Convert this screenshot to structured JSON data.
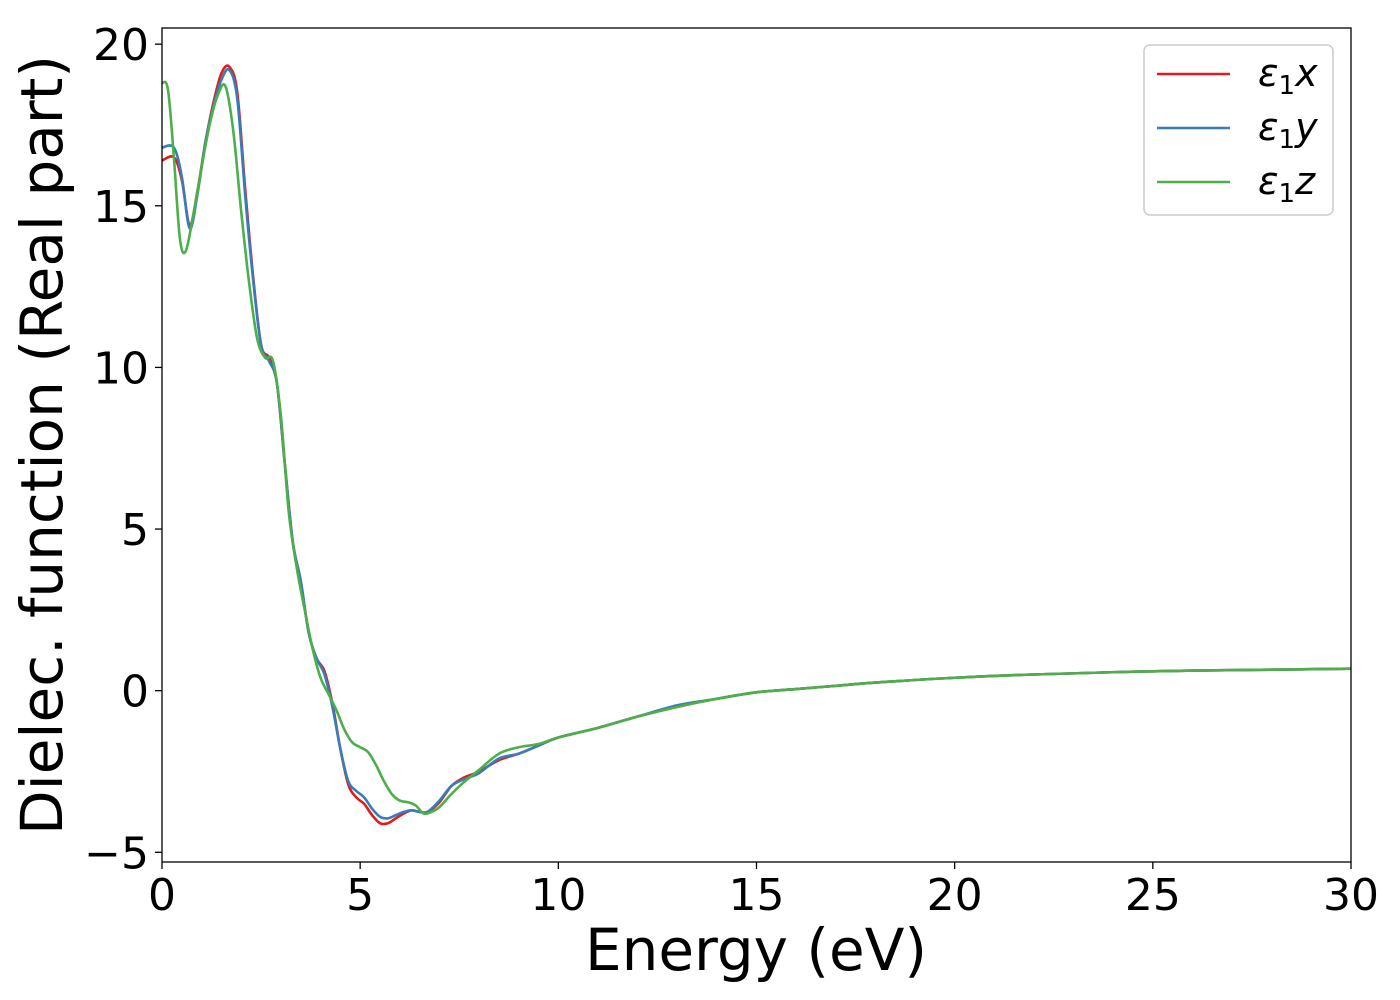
{
  "chart_data": {
    "type": "line",
    "xlabel": "Energy (eV)",
    "ylabel": "Dielec. function (Real part)",
    "xlim": [
      0,
      30
    ],
    "ylim": [
      -5.3,
      20.5
    ],
    "xticks": [
      0,
      5,
      10,
      15,
      20,
      25,
      30
    ],
    "xtick_labels": [
      "0",
      "5",
      "10",
      "15",
      "20",
      "25",
      "30"
    ],
    "yticks": [
      -5,
      0,
      5,
      10,
      15,
      20
    ],
    "ytick_labels": [
      "−5",
      "0",
      "5",
      "10",
      "15",
      "20"
    ],
    "grid": false,
    "legend_position": "top-right",
    "series": [
      {
        "name": "ε1x",
        "legend_base": "ε",
        "legend_sub": "1",
        "legend_var": "x",
        "color": "#e41a1c",
        "x": [
          0,
          0.3,
          0.5,
          0.7,
          0.9,
          1.1,
          1.3,
          1.5,
          1.7,
          1.9,
          2.1,
          2.3,
          2.5,
          2.7,
          2.9,
          3.1,
          3.3,
          3.5,
          3.7,
          3.9,
          4.1,
          4.3,
          4.5,
          4.7,
          4.9,
          5.1,
          5.3,
          5.5,
          5.7,
          5.9,
          6.1,
          6.3,
          6.5,
          6.7,
          7.0,
          7.3,
          7.6,
          8.0,
          8.5,
          9.0,
          9.5,
          10.0,
          11.0,
          12.0,
          13.0,
          14.0,
          15.0,
          16.0,
          17.0,
          18.0,
          20.0,
          22.0,
          25.0,
          28.0,
          30.0
        ],
        "y": [
          16.4,
          16.5,
          15.8,
          14.4,
          15.5,
          17.0,
          18.2,
          19.1,
          19.3,
          18.5,
          15.5,
          12.8,
          10.7,
          10.3,
          9.5,
          7.0,
          4.6,
          3.4,
          1.8,
          1.0,
          0.6,
          -0.4,
          -1.8,
          -2.9,
          -3.3,
          -3.5,
          -3.85,
          -4.1,
          -4.1,
          -3.95,
          -3.8,
          -3.7,
          -3.75,
          -3.75,
          -3.45,
          -2.95,
          -2.7,
          -2.5,
          -2.15,
          -1.95,
          -1.7,
          -1.45,
          -1.15,
          -0.8,
          -0.5,
          -0.25,
          -0.05,
          0.05,
          0.15,
          0.25,
          0.4,
          0.5,
          0.6,
          0.65,
          0.68
        ]
      },
      {
        "name": "ε1y",
        "legend_base": "ε",
        "legend_sub": "1",
        "legend_var": "y",
        "color": "#377eb8",
        "x": [
          0,
          0.3,
          0.5,
          0.7,
          0.9,
          1.1,
          1.3,
          1.5,
          1.7,
          1.9,
          2.1,
          2.3,
          2.5,
          2.7,
          2.9,
          3.1,
          3.3,
          3.5,
          3.7,
          3.9,
          4.1,
          4.3,
          4.5,
          4.7,
          4.9,
          5.1,
          5.3,
          5.5,
          5.7,
          5.9,
          6.1,
          6.3,
          6.5,
          6.7,
          7.0,
          7.3,
          7.6,
          8.0,
          8.5,
          9.0,
          9.5,
          10.0,
          11.0,
          12.0,
          13.0,
          14.0,
          15.0,
          16.0,
          17.0,
          18.0,
          20.0,
          22.0,
          25.0,
          28.0,
          30.0
        ],
        "y": [
          16.8,
          16.8,
          15.9,
          14.3,
          15.4,
          17.0,
          18.1,
          18.9,
          19.2,
          18.3,
          15.3,
          12.7,
          10.7,
          10.2,
          9.5,
          7.0,
          4.6,
          3.4,
          1.8,
          1.0,
          0.5,
          -0.5,
          -1.8,
          -2.8,
          -3.1,
          -3.3,
          -3.65,
          -3.9,
          -3.95,
          -3.85,
          -3.75,
          -3.7,
          -3.75,
          -3.75,
          -3.4,
          -2.95,
          -2.75,
          -2.55,
          -2.1,
          -1.95,
          -1.7,
          -1.45,
          -1.15,
          -0.8,
          -0.45,
          -0.25,
          -0.05,
          0.05,
          0.15,
          0.25,
          0.4,
          0.5,
          0.6,
          0.65,
          0.68
        ]
      },
      {
        "name": "ε1z",
        "legend_base": "ε",
        "legend_sub": "1",
        "legend_var": "z",
        "color": "#4daf4a",
        "x": [
          0,
          0.15,
          0.3,
          0.45,
          0.6,
          0.8,
          1.0,
          1.2,
          1.4,
          1.6,
          1.8,
          2.0,
          2.2,
          2.4,
          2.6,
          2.8,
          3.0,
          3.2,
          3.4,
          3.6,
          3.8,
          4.0,
          4.2,
          4.4,
          4.6,
          4.8,
          5.0,
          5.2,
          5.4,
          5.6,
          5.8,
          6.0,
          6.2,
          6.4,
          6.6,
          6.8,
          7.0,
          7.3,
          7.6,
          8.0,
          8.5,
          9.0,
          9.5,
          10.0,
          11.0,
          12.0,
          13.0,
          14.0,
          15.0,
          16.0,
          17.0,
          18.0,
          20.0,
          22.0,
          25.0,
          28.0,
          30.0
        ],
        "y": [
          18.8,
          18.6,
          16.5,
          14.0,
          13.6,
          14.8,
          16.2,
          17.5,
          18.4,
          18.7,
          17.3,
          14.8,
          12.6,
          10.9,
          10.3,
          10.2,
          8.5,
          5.5,
          3.8,
          2.5,
          1.3,
          0.4,
          -0.1,
          -0.6,
          -1.2,
          -1.6,
          -1.75,
          -1.9,
          -2.3,
          -2.8,
          -3.2,
          -3.4,
          -3.45,
          -3.55,
          -3.8,
          -3.75,
          -3.6,
          -3.2,
          -2.85,
          -2.45,
          -1.95,
          -1.75,
          -1.65,
          -1.45,
          -1.15,
          -0.8,
          -0.5,
          -0.25,
          -0.05,
          0.05,
          0.15,
          0.25,
          0.4,
          0.5,
          0.6,
          0.65,
          0.68
        ]
      }
    ]
  }
}
